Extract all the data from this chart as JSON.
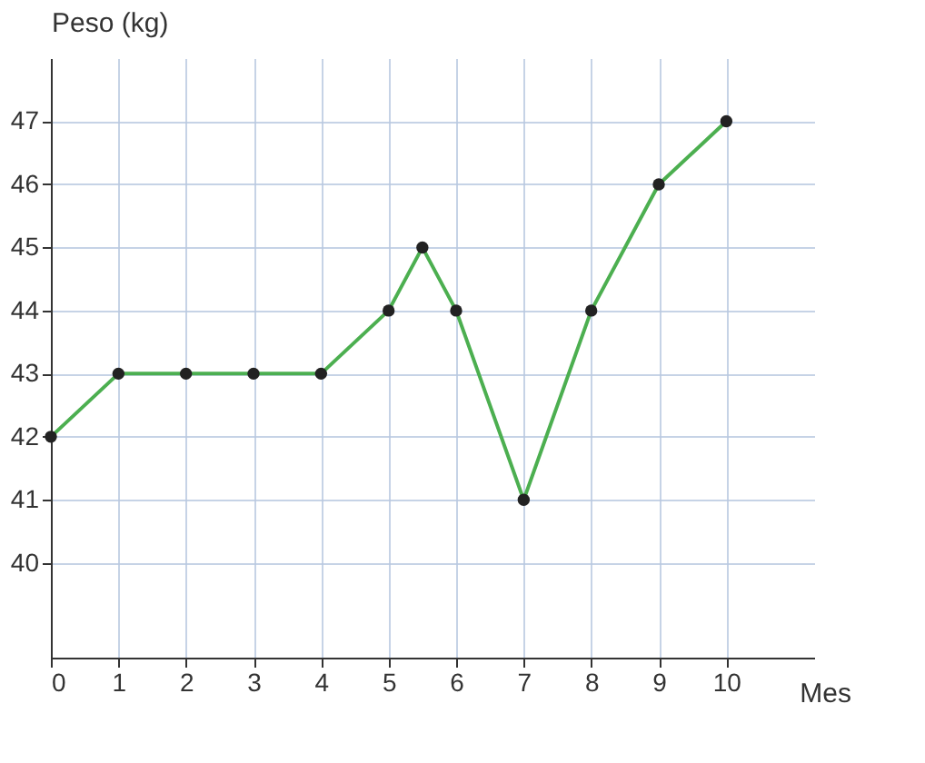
{
  "chart_data": {
    "type": "line",
    "xlabel": "Mes",
    "ylabel": "Peso (kg)",
    "x": [
      0,
      1,
      2,
      3,
      4,
      5,
      5.5,
      6,
      7,
      8,
      9,
      10
    ],
    "series": [
      {
        "color": "#4caf50",
        "values": [
          42,
          43,
          43,
          43,
          43,
          44,
          45,
          44,
          41,
          44,
          46,
          47
        ]
      }
    ],
    "xlim": [
      0,
      11.3
    ],
    "xticks": [
      0,
      1,
      2,
      3,
      4,
      5,
      6,
      7,
      8,
      9,
      10
    ],
    "ylim": [
      38.5,
      48
    ],
    "yticks": [
      40,
      41,
      42,
      43,
      44,
      45,
      46,
      47
    ],
    "grid": true,
    "marker": "circle",
    "line_style": "solid"
  }
}
